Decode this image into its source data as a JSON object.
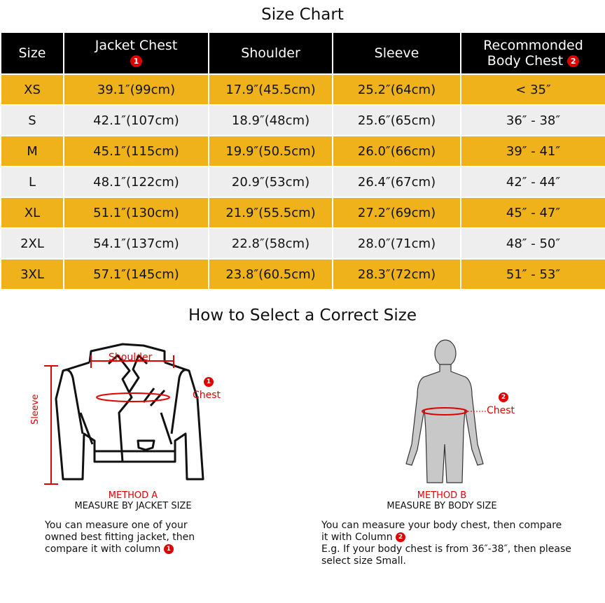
{
  "title": "Size Chart",
  "columns": [
    "Size",
    "Jacket Chest",
    "Shoulder",
    "Sleeve",
    "Recommonded",
    "Body  Chest"
  ],
  "badges": {
    "one": "1",
    "two": "2"
  },
  "rows": [
    [
      "XS",
      "39.1″(99cm)",
      "17.9″(45.5cm)",
      "25.2″(64cm)",
      "< 35″"
    ],
    [
      "S",
      "42.1″(107cm)",
      "18.9″(48cm)",
      "25.6″(65cm)",
      "36″ - 38″"
    ],
    [
      "M",
      "45.1″(115cm)",
      "19.9″(50.5cm)",
      "26.0″(66cm)",
      "39″ - 41″"
    ],
    [
      "L",
      "48.1″(122cm)",
      "20.9″(53cm)",
      "26.4″(67cm)",
      "42″ - 44″"
    ],
    [
      "XL",
      "51.1″(130cm)",
      "21.9″(55.5cm)",
      "27.2″(69cm)",
      "45″ - 47″"
    ],
    [
      "2XL",
      "54.1″(137cm)",
      "22.8″(58cm)",
      "28.0″(71cm)",
      "48″ - 50″"
    ],
    [
      "3XL",
      "57.1″(145cm)",
      "23.8″(60.5cm)",
      "28.3″(72cm)",
      "51″ - 53″"
    ]
  ],
  "colors": {
    "header": "#000000",
    "odd_row": "#EFB21A",
    "even_row": "#EEEEEE",
    "accent": "#E00000"
  },
  "howto_title": "How to Select a Correct Size",
  "methodA": {
    "label": "METHOD A",
    "subtitle": "MEASURE BY JACKET SIZE",
    "shoulder": "Shoulder",
    "chest": "Chest",
    "sleeve": "Sleeve",
    "desc1": "You can measure one of your",
    "desc2": "owned best fitting jacket, then",
    "desc3": "compare it with column"
  },
  "methodB": {
    "label": "METHOD B",
    "subtitle": "MEASURE BY BODY SIZE",
    "chest": "Chest",
    "desc1": "You can measure your body chest, then compare",
    "desc2": "it with Column",
    "desc3": "E.g. If your body chest is from 36″-38″, then please",
    "desc4": "select size Small."
  }
}
